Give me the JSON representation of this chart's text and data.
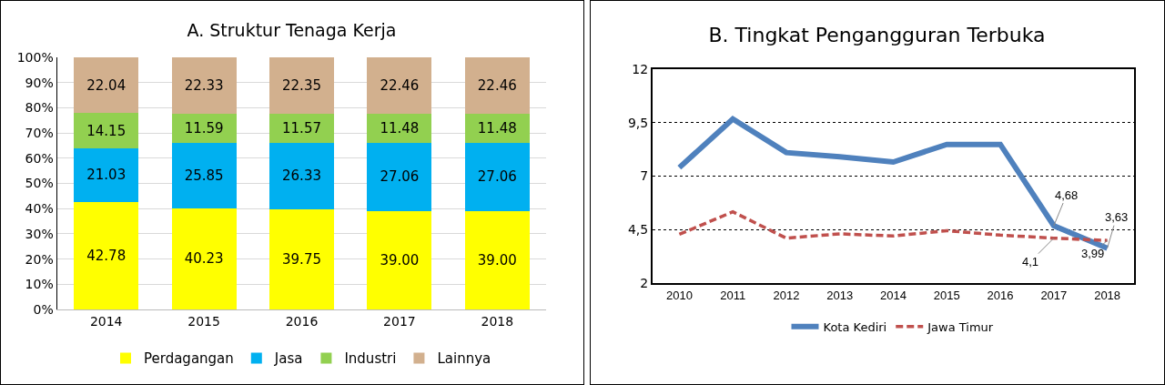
{
  "chart_data": [
    {
      "type": "bar",
      "title": "A. Struktur Tenaga Kerja",
      "stacked": true,
      "categories": [
        "2014",
        "2015",
        "2016",
        "2017",
        "2018"
      ],
      "series": [
        {
          "name": "Perdagangan",
          "color": "#ffff00",
          "values": [
            42.78,
            40.23,
            39.75,
            39.0,
            39.0
          ],
          "value_labels": [
            "42.78",
            "40.23",
            "39.75",
            "39.00",
            "39.00"
          ]
        },
        {
          "name": "Jasa",
          "color": "#00b0f0",
          "values": [
            21.03,
            25.85,
            26.33,
            27.06,
            27.06
          ],
          "value_labels": [
            "21.03",
            "25.85",
            "26.33",
            "27.06",
            "27.06"
          ]
        },
        {
          "name": "Industri",
          "color": "#92d050",
          "values": [
            14.15,
            11.59,
            11.57,
            11.48,
            11.48
          ],
          "value_labels": [
            "14.15",
            "11.59",
            "11.57",
            "11.48",
            "11.48"
          ]
        },
        {
          "name": "Lainnya",
          "color": "#d2b08e",
          "values": [
            22.04,
            22.33,
            22.35,
            22.46,
            22.46
          ],
          "value_labels": [
            "22.04",
            "22.33",
            "22.35",
            "22.46",
            "22.46"
          ]
        }
      ],
      "ylim": [
        0,
        100
      ],
      "yticks": [
        {
          "value": 0,
          "label": "0%"
        },
        {
          "value": 10,
          "label": "10%"
        },
        {
          "value": 20,
          "label": "20%"
        },
        {
          "value": 30,
          "label": "30%"
        },
        {
          "value": 40,
          "label": "40%"
        },
        {
          "value": 50,
          "label": "50%"
        },
        {
          "value": 60,
          "label": "60%"
        },
        {
          "value": 70,
          "label": "70%"
        },
        {
          "value": 80,
          "label": "80%"
        },
        {
          "value": 90,
          "label": "90%"
        },
        {
          "value": 100,
          "label": "100%"
        }
      ],
      "grid": "y",
      "legend": "bottom"
    },
    {
      "type": "line",
      "title": "B. Tingkat Pengangguran Terbuka",
      "categories": [
        "2010",
        "2011",
        "2012",
        "2013",
        "2014",
        "2015",
        "2016",
        "2017",
        "2018"
      ],
      "series": [
        {
          "name": "Kota Kediri",
          "color": "#4f81bd",
          "line_style": "solid",
          "values": [
            7.4,
            9.67,
            8.1,
            7.9,
            7.66,
            8.48,
            8.48,
            4.68,
            3.63
          ],
          "value_labels": [
            null,
            null,
            null,
            null,
            null,
            null,
            null,
            "4,68",
            "3,63"
          ]
        },
        {
          "name": "Jawa Timur",
          "color": "#c0504d",
          "line_style": "dashed",
          "values": [
            4.28,
            5.33,
            4.1,
            4.3,
            4.2,
            4.45,
            4.24,
            4.1,
            3.99
          ],
          "value_labels": [
            null,
            null,
            null,
            null,
            null,
            null,
            null,
            "4,1",
            "3,99"
          ]
        }
      ],
      "ylim": [
        2,
        12
      ],
      "yticks": [
        2,
        {
          "value": 4.5,
          "label": "4,5"
        },
        7,
        {
          "value": 9.5,
          "label": "9,5"
        },
        12
      ],
      "grid": "y",
      "legend": "bottom",
      "marker": "none"
    }
  ]
}
